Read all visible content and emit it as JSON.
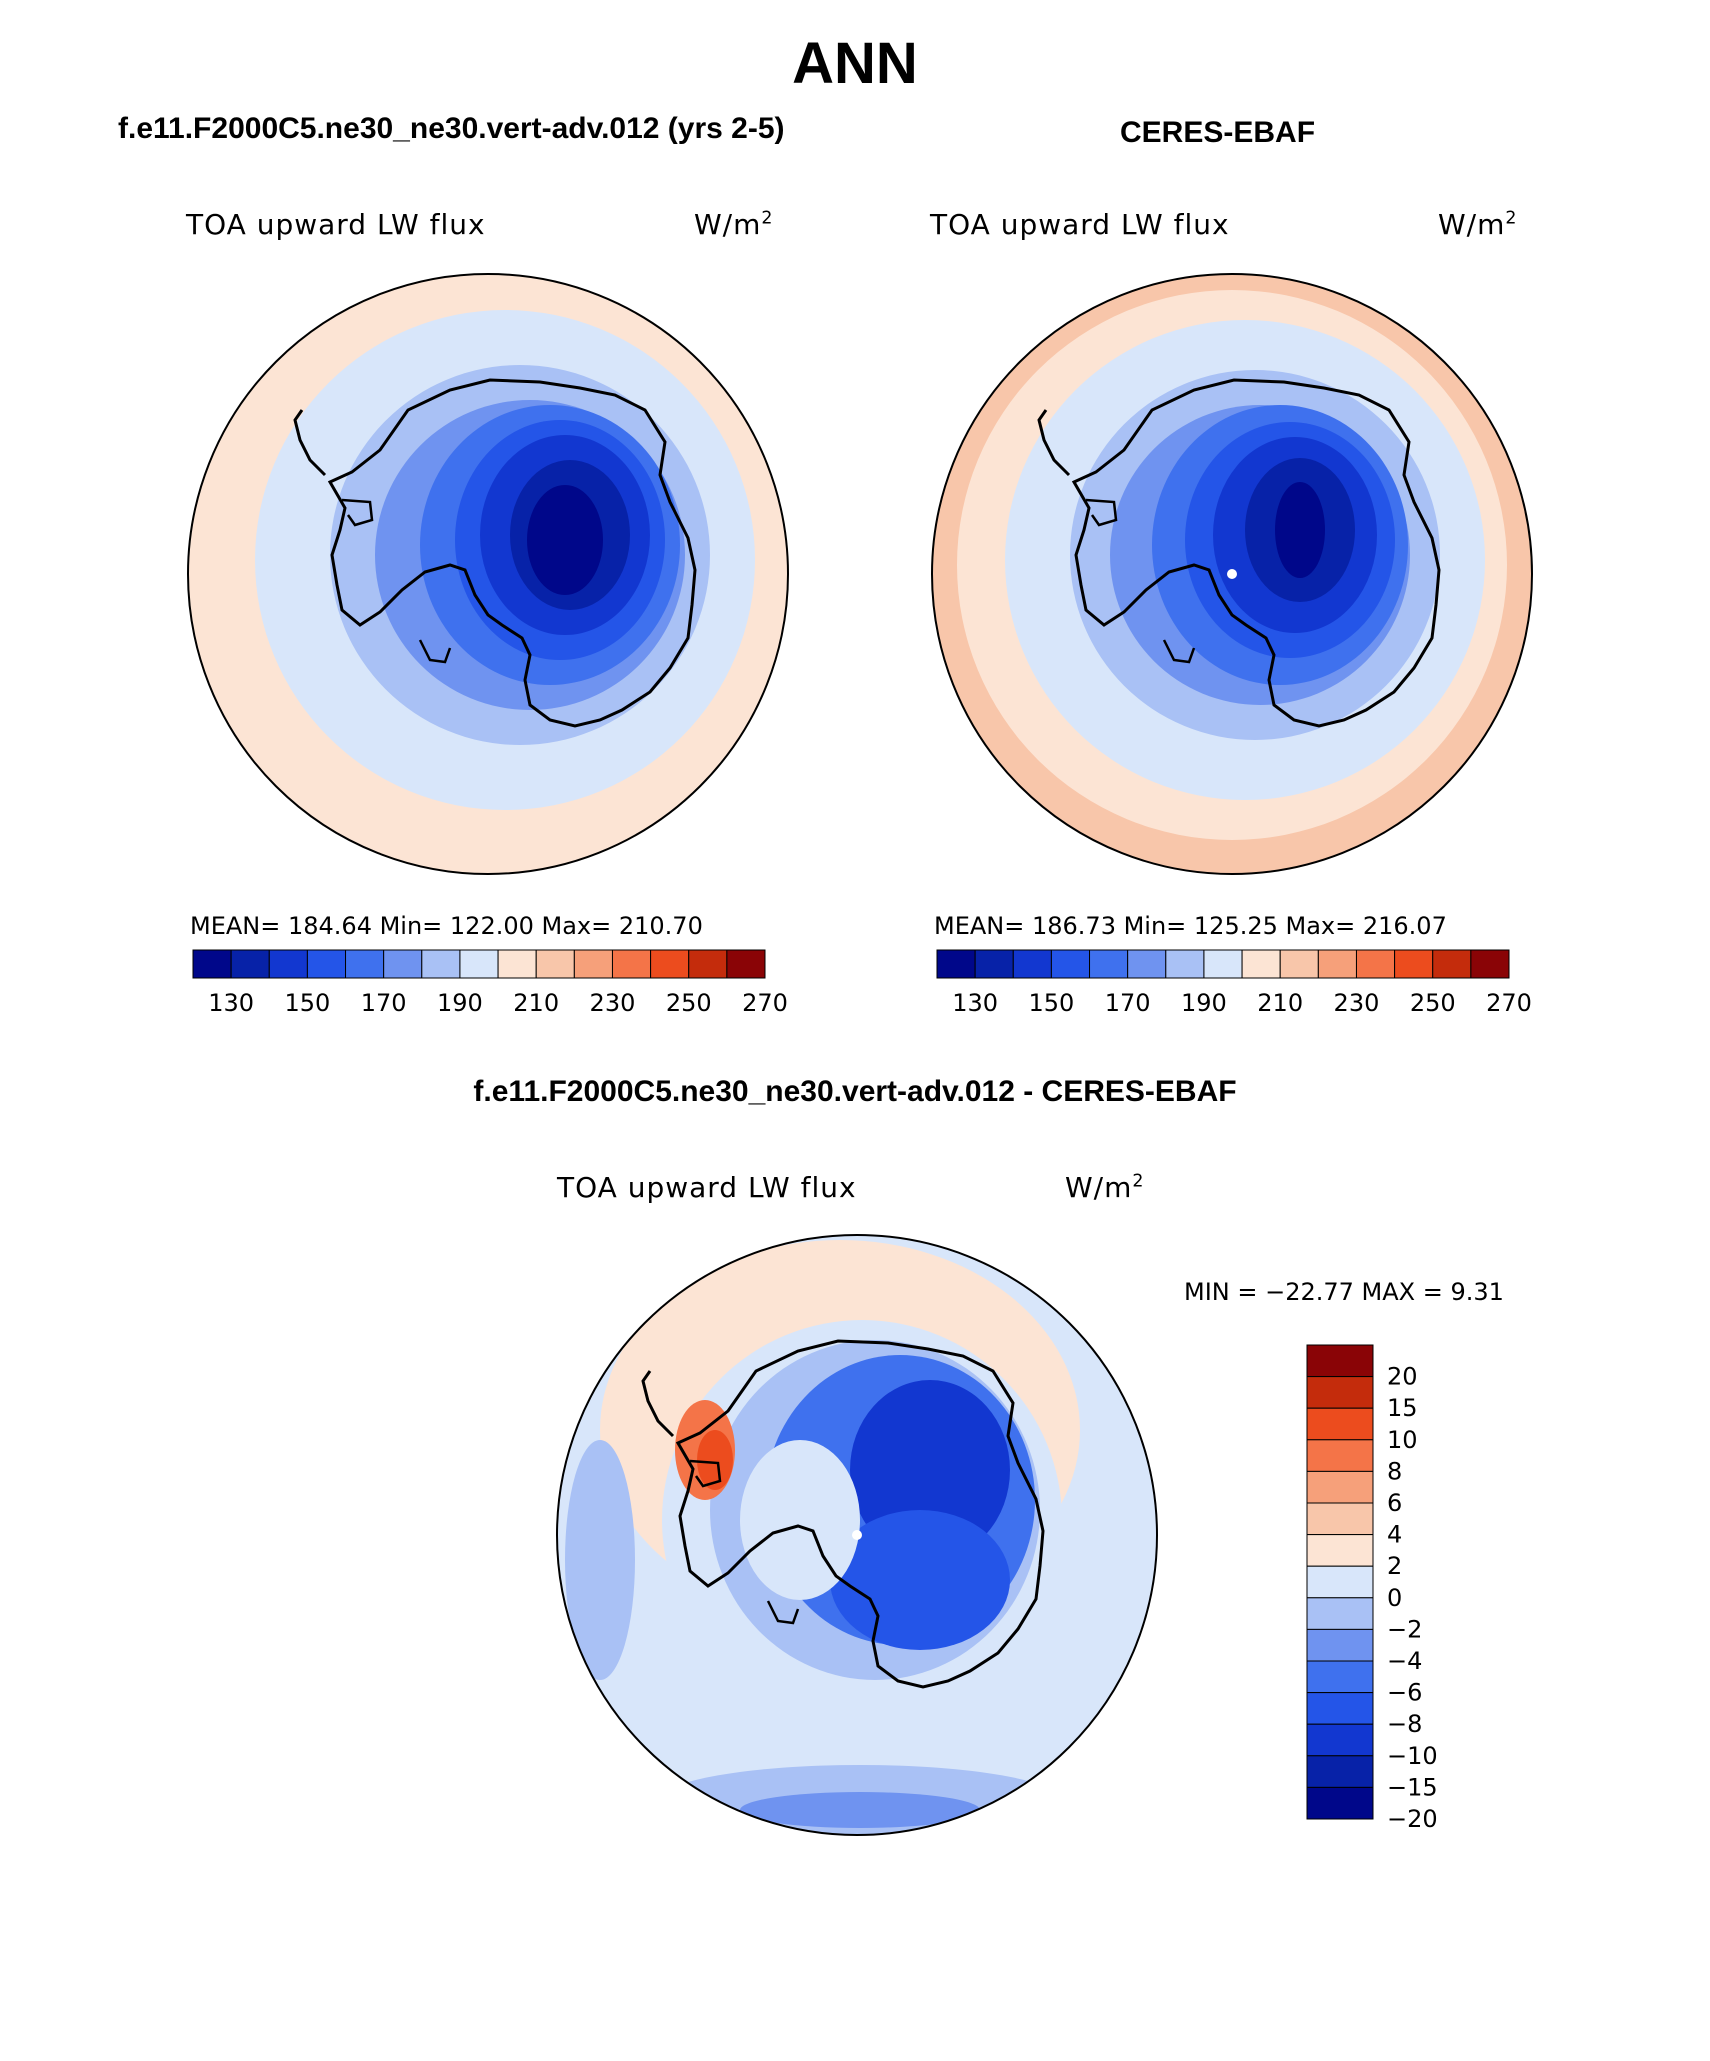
{
  "figure": {
    "title": "ANN"
  },
  "panels": [
    {
      "title": "f.e11.F2000C5.ne30_ne30.vert-adv.012 (yrs 2-5)",
      "variable": "TOA upward LW flux",
      "units_base": "W/m",
      "units_exp": "2",
      "stats": "MEAN= 184.64   Min= 122.00   Max= 210.70",
      "colorbar_ticks": [
        "130",
        "150",
        "170",
        "190",
        "210",
        "230",
        "250",
        "270"
      ]
    },
    {
      "title": "CERES-EBAF",
      "variable": "TOA upward LW flux",
      "units_base": "W/m",
      "units_exp": "2",
      "stats": "MEAN= 186.73   Min= 125.25   Max= 216.07",
      "colorbar_ticks": [
        "130",
        "150",
        "170",
        "190",
        "210",
        "230",
        "250",
        "270"
      ]
    },
    {
      "title": "f.e11.F2000C5.ne30_ne30.vert-adv.012 - CERES-EBAF",
      "variable": "TOA upward LW flux",
      "units_base": "W/m",
      "units_exp": "2",
      "stats": "MIN = −22.77 MAX =    9.31",
      "colorbar_ticks": [
        "20",
        "15",
        "10",
        "8",
        "6",
        "4",
        "2",
        "0",
        "−2",
        "−4",
        "−6",
        "−8",
        "−10",
        "−15",
        "−20"
      ]
    }
  ],
  "colors": {
    "abs_scale": [
      "#00078a",
      "#0722a8",
      "#1237d0",
      "#2455e8",
      "#3f71ee",
      "#6f93f0",
      "#a9c1f5",
      "#d8e6fa",
      "#fce4d4",
      "#f8c6aa",
      "#f6a07a",
      "#f47448",
      "#ec4c1e",
      "#c42c0c",
      "#8a0406"
    ],
    "diff_scale": [
      "#00078a",
      "#0722a8",
      "#1237d0",
      "#2455e8",
      "#3f71ee",
      "#6f93f0",
      "#a9c1f5",
      "#d8e6fa",
      "#fce4d4",
      "#f8c6aa",
      "#f6a07a",
      "#f47448",
      "#ec4c1e",
      "#c42c0c",
      "#8a0406"
    ]
  }
}
